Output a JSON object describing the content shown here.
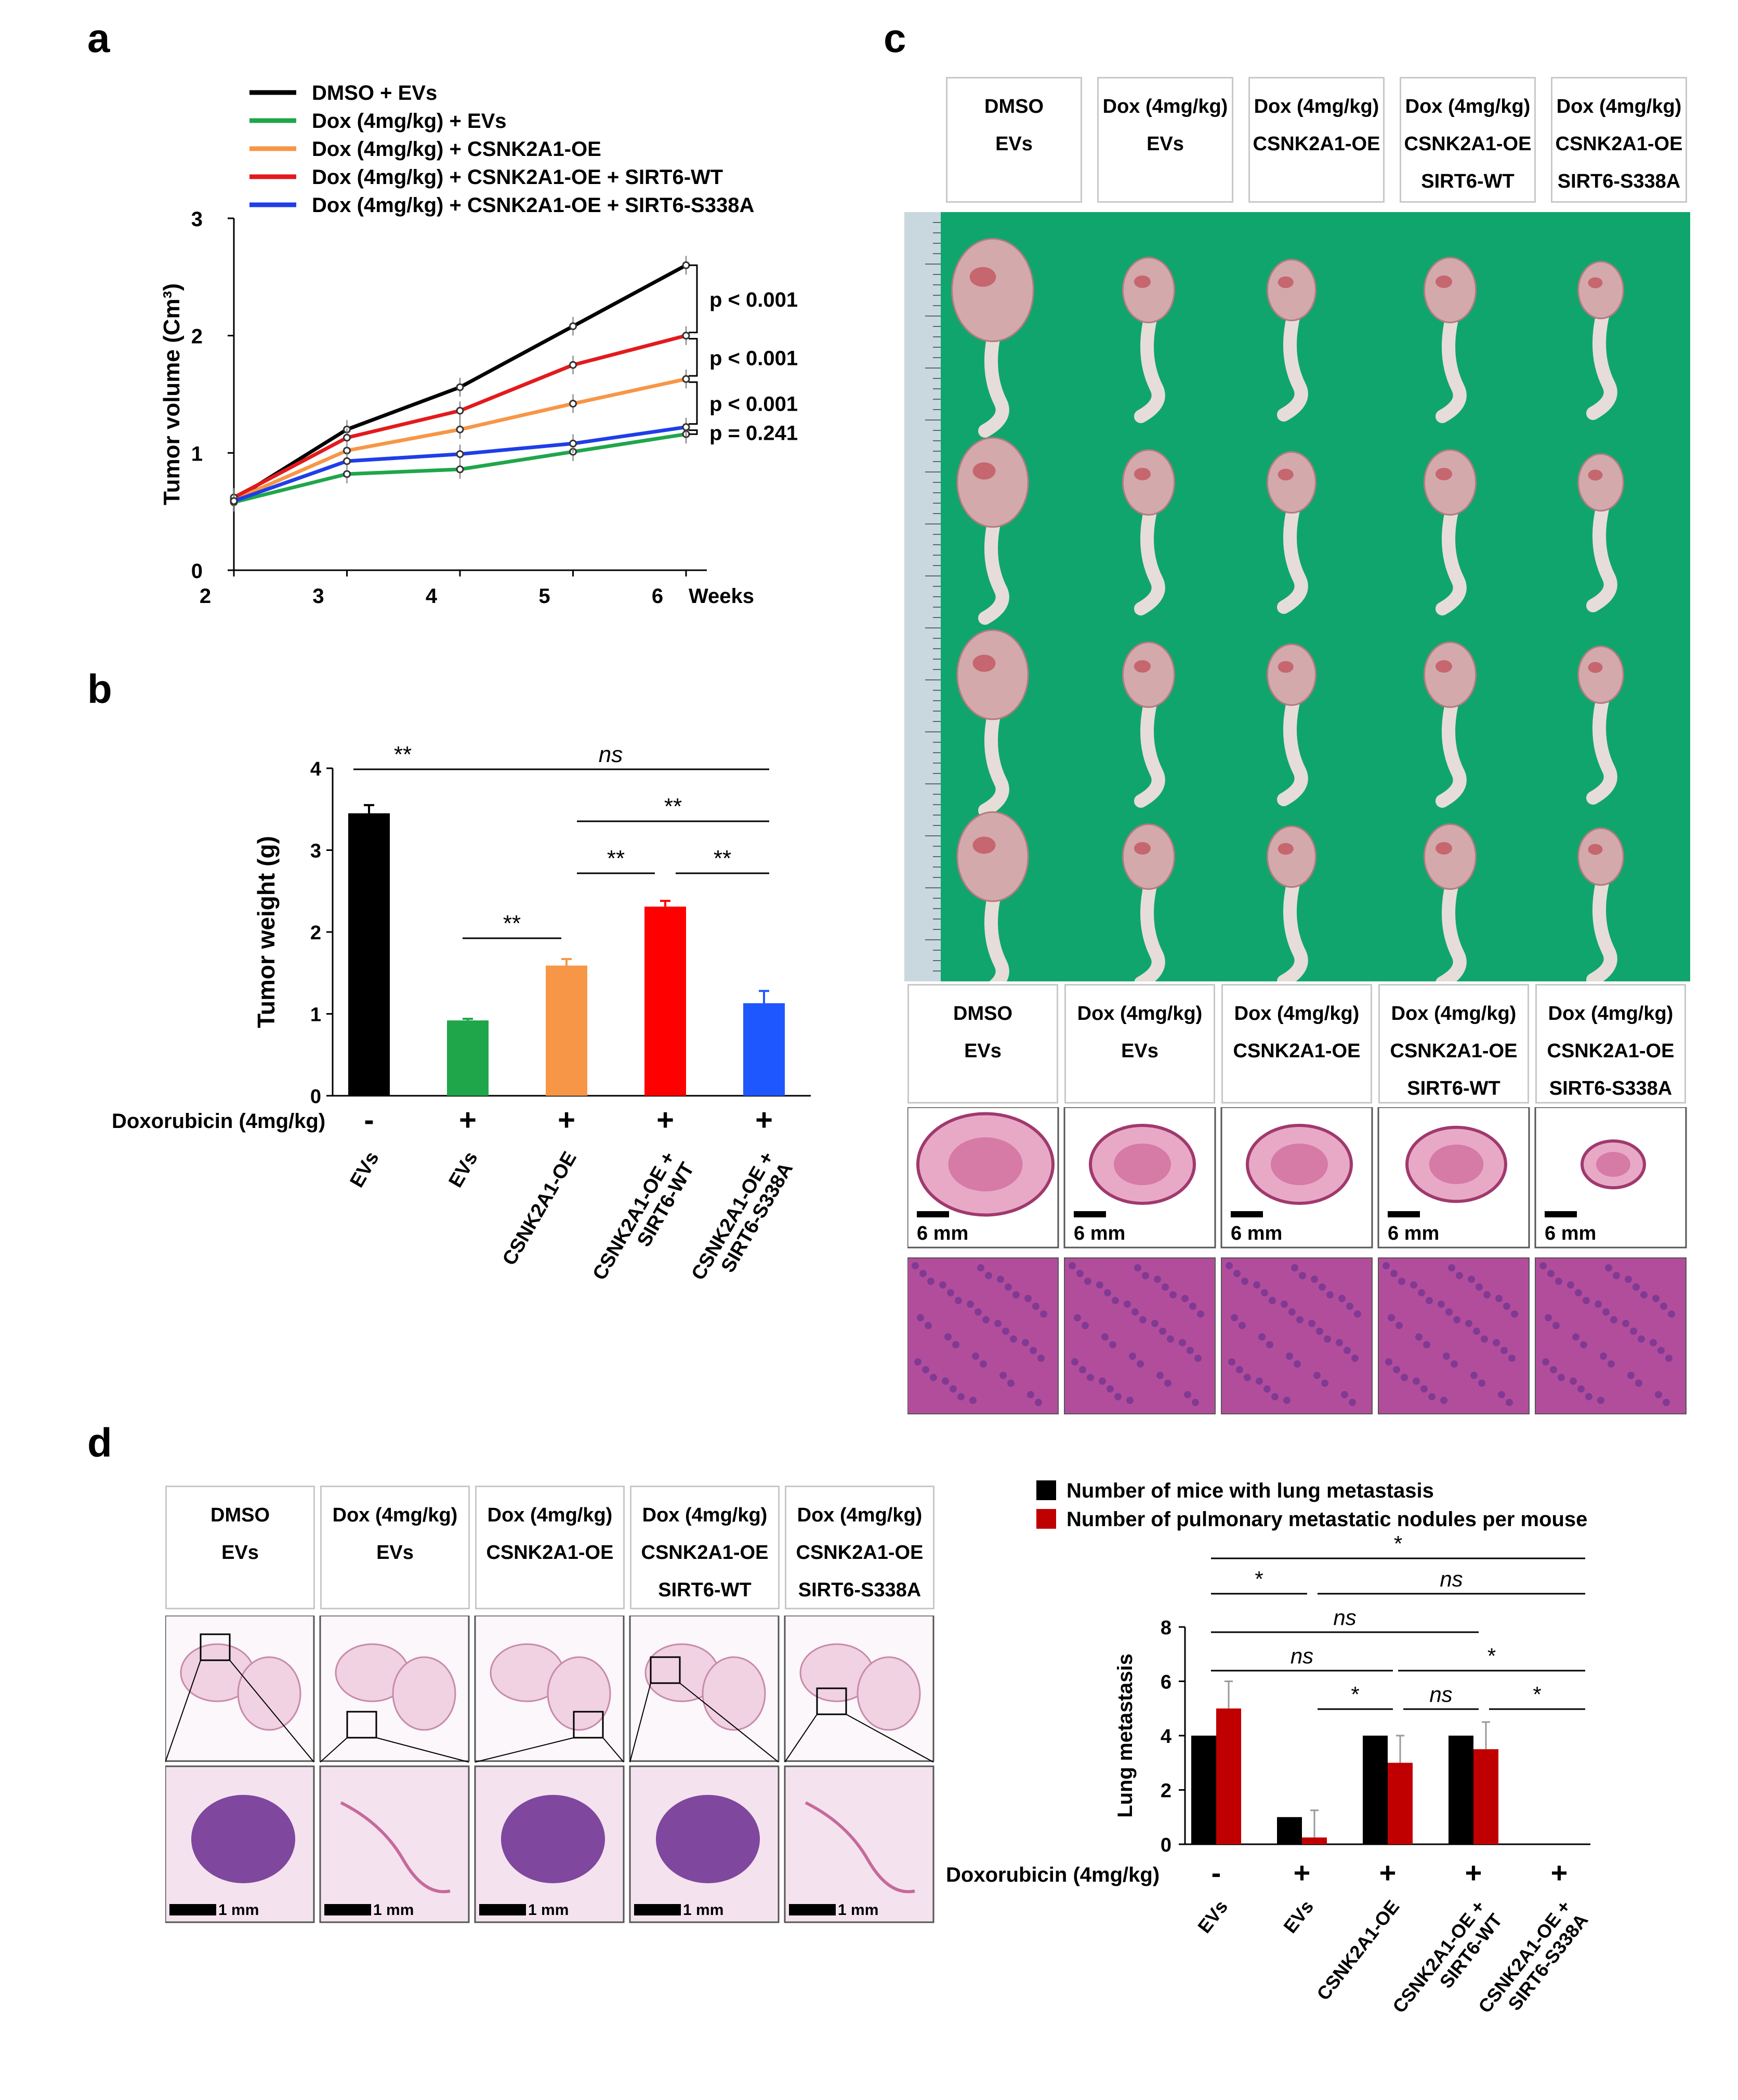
{
  "panels": {
    "a": "a",
    "b": "b",
    "c": "c",
    "d": "d"
  },
  "chart_data": [
    {
      "id": "a",
      "type": "line",
      "ylabel": "Tumor volume (Cm³)",
      "xlabel": "Weeks",
      "x": [
        2,
        3,
        4,
        5,
        6
      ],
      "ylim": [
        0,
        3
      ],
      "yticks": [
        0,
        1,
        2,
        3
      ],
      "legend": "top",
      "series": [
        {
          "name": "DMSO + EVs",
          "color": "#000000",
          "values": [
            0.6,
            1.2,
            1.56,
            2.08,
            2.6
          ]
        },
        {
          "name": "Dox (4mg/kg) + EVs",
          "color": "#1fa64a",
          "values": [
            0.58,
            0.82,
            0.86,
            1.01,
            1.16
          ]
        },
        {
          "name": "Dox (4mg/kg) + CSNK2A1-OE",
          "color": "#f79646",
          "values": [
            0.6,
            1.02,
            1.2,
            1.42,
            1.63
          ]
        },
        {
          "name": "Dox (4mg/kg) + CSNK2A1-OE + SIRT6-WT",
          "color": "#e31a1c",
          "values": [
            0.62,
            1.13,
            1.36,
            1.75,
            2.0
          ]
        },
        {
          "name": "Dox (4mg/kg) + CSNK2A1-OE + SIRT6-S338A",
          "color": "#1f3ee8",
          "values": [
            0.59,
            0.93,
            0.99,
            1.08,
            1.22
          ]
        }
      ],
      "annotations": [
        "p < 0.001",
        "p < 0.001",
        "p < 0.001",
        "p = 0.241"
      ]
    },
    {
      "id": "b",
      "type": "bar",
      "ylabel": "Tumor weight (g)",
      "ylim": [
        0,
        4
      ],
      "yticks": [
        0,
        1,
        2,
        3,
        4
      ],
      "treatment_label": "Doxorubicin (4mg/kg)",
      "treatment": [
        "-",
        "+",
        "+",
        "+",
        "+"
      ],
      "categories": [
        "EVs",
        "EVs",
        "CSNK2A1-OE",
        "CSNK2A1-OE + SIRT6-WT",
        "CSNK2A1-OE + SIRT6-S338A"
      ],
      "values": [
        3.45,
        0.92,
        1.59,
        2.31,
        1.13
      ],
      "errors": [
        0.1,
        0.02,
        0.08,
        0.07,
        0.15
      ],
      "colors": [
        "#000000",
        "#1fa64a",
        "#f79646",
        "#ff0000",
        "#1f57ff"
      ],
      "significance": [
        "**",
        "ns",
        "**",
        "**",
        "**",
        "**"
      ]
    },
    {
      "id": "d",
      "type": "bar",
      "ylabel": "Lung metastasis",
      "ylim": [
        0,
        8
      ],
      "yticks": [
        0,
        2,
        4,
        6,
        8
      ],
      "treatment_label": "Doxorubicin (4mg/kg)",
      "treatment": [
        "-",
        "+",
        "+",
        "+",
        "+"
      ],
      "categories": [
        "EVs",
        "EVs",
        "CSNK2A1-OE",
        "CSNK2A1-OE + SIRT6-WT",
        "CSNK2A1-OE + SIRT6-S338A"
      ],
      "legend": "top",
      "series": [
        {
          "name": "Number of mice with lung metastasis",
          "color": "#000000",
          "values": [
            4,
            1,
            4,
            4,
            0
          ],
          "errors": [
            0,
            0,
            0,
            0,
            0
          ]
        },
        {
          "name": "Number of pulmonary metastatic nodules per mouse",
          "color": "#c00000",
          "values": [
            5,
            0.25,
            3,
            3.5,
            0
          ],
          "errors": [
            1,
            1,
            1,
            1,
            0
          ]
        }
      ],
      "significance": [
        "*",
        "*",
        "ns",
        "ns",
        "ns",
        "*",
        "*",
        "ns",
        "*"
      ]
    }
  ],
  "panel_c": {
    "headers": [
      [
        "DMSO",
        "EVs"
      ],
      [
        "Dox (4mg/kg)",
        "EVs"
      ],
      [
        "Dox (4mg/kg)",
        "CSNK2A1-OE"
      ],
      [
        "Dox (4mg/kg)",
        "CSNK2A1-OE",
        "SIRT6-WT"
      ],
      [
        "Dox (4mg/kg)",
        "CSNK2A1-OE",
        "SIRT6-S338A"
      ]
    ],
    "scale_bar": "6 mm",
    "photo_bg": "#11a56e"
  },
  "panel_d": {
    "headers": [
      [
        "DMSO",
        "EVs"
      ],
      [
        "Dox (4mg/kg)",
        "EVs"
      ],
      [
        "Dox (4mg/kg)",
        "CSNK2A1-OE"
      ],
      [
        "Dox (4mg/kg)",
        "CSNK2A1-OE",
        "SIRT6-WT"
      ],
      [
        "Dox (4mg/kg)",
        "CSNK2A1-OE",
        "SIRT6-S338A"
      ]
    ],
    "scale_bar": "1 mm"
  }
}
